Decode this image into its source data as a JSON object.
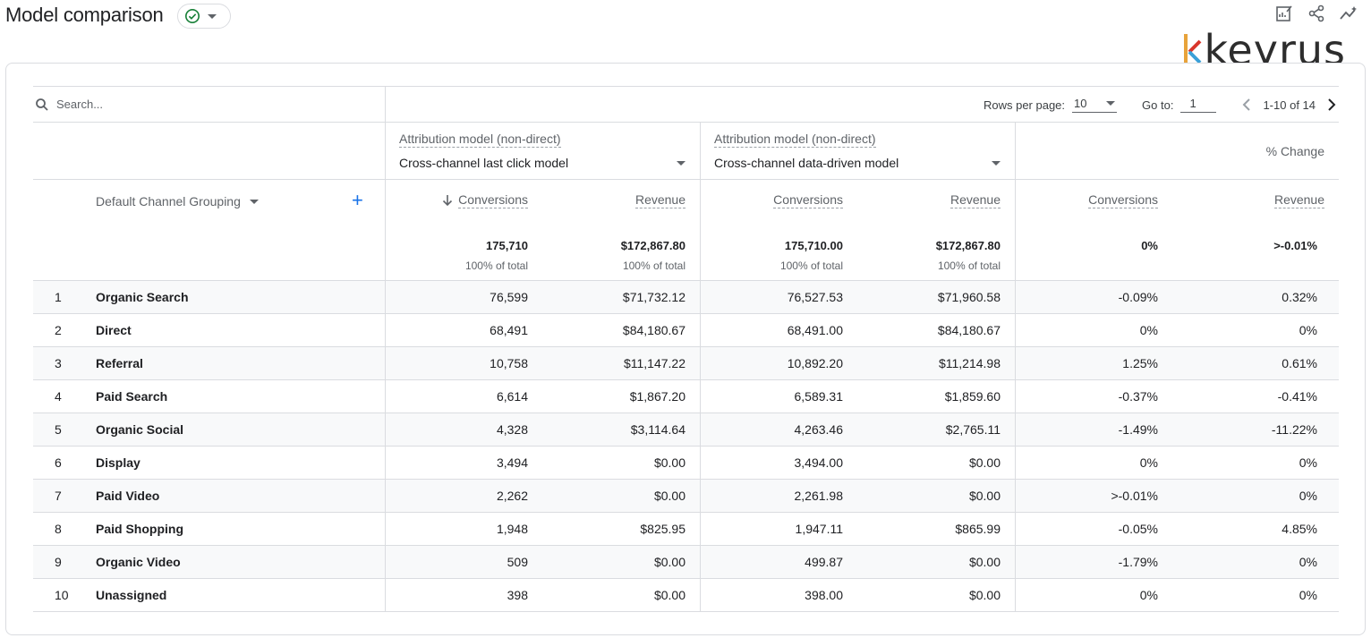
{
  "header": {
    "title": "Model comparison",
    "status_icon": "check-circle-icon",
    "icons": [
      "edit-report-icon",
      "share-icon",
      "insights-icon"
    ]
  },
  "brand": {
    "name": "keyrus"
  },
  "search": {
    "placeholder": "Search..."
  },
  "pagination": {
    "rows_per_page_label": "Rows per page:",
    "rows_per_page_value": "10",
    "goto_label": "Go to:",
    "goto_value": "1",
    "range_text": "1-10 of 14"
  },
  "models": {
    "left": {
      "label": "Attribution model (non-direct)",
      "value": "Cross-channel last click model"
    },
    "right": {
      "label": "Attribution model (non-direct)",
      "value": "Cross-channel data-driven model"
    },
    "pct_change_label": "% Change"
  },
  "columns": {
    "dimension": "Default Channel Grouping",
    "metrics": [
      "Conversions",
      "Revenue",
      "Conversions",
      "Revenue",
      "Conversions",
      "Revenue"
    ]
  },
  "totals": [
    {
      "value": "175,710",
      "sub": "100% of total"
    },
    {
      "value": "$172,867.80",
      "sub": "100% of total"
    },
    {
      "value": "175,710.00",
      "sub": "100% of total"
    },
    {
      "value": "$172,867.80",
      "sub": "100% of total"
    },
    {
      "value": "0%",
      "sub": ""
    },
    {
      "value": ">-0.01%",
      "sub": ""
    }
  ],
  "rows": [
    {
      "idx": "1",
      "name": "Organic Search",
      "c1": "76,599",
      "r1": "$71,732.12",
      "c2": "76,527.53",
      "r2": "$71,960.58",
      "pc": "-0.09%",
      "pr": "0.32%"
    },
    {
      "idx": "2",
      "name": "Direct",
      "c1": "68,491",
      "r1": "$84,180.67",
      "c2": "68,491.00",
      "r2": "$84,180.67",
      "pc": "0%",
      "pr": "0%"
    },
    {
      "idx": "3",
      "name": "Referral",
      "c1": "10,758",
      "r1": "$11,147.22",
      "c2": "10,892.20",
      "r2": "$11,214.98",
      "pc": "1.25%",
      "pr": "0.61%"
    },
    {
      "idx": "4",
      "name": "Paid Search",
      "c1": "6,614",
      "r1": "$1,867.20",
      "c2": "6,589.31",
      "r2": "$1,859.60",
      "pc": "-0.37%",
      "pr": "-0.41%"
    },
    {
      "idx": "5",
      "name": "Organic Social",
      "c1": "4,328",
      "r1": "$3,114.64",
      "c2": "4,263.46",
      "r2": "$2,765.11",
      "pc": "-1.49%",
      "pr": "-11.22%"
    },
    {
      "idx": "6",
      "name": "Display",
      "c1": "3,494",
      "r1": "$0.00",
      "c2": "3,494.00",
      "r2": "$0.00",
      "pc": "0%",
      "pr": "0%"
    },
    {
      "idx": "7",
      "name": "Paid Video",
      "c1": "2,262",
      "r1": "$0.00",
      "c2": "2,261.98",
      "r2": "$0.00",
      "pc": ">-0.01%",
      "pr": "0%"
    },
    {
      "idx": "8",
      "name": "Paid Shopping",
      "c1": "1,948",
      "r1": "$825.95",
      "c2": "1,947.11",
      "r2": "$865.99",
      "pc": "-0.05%",
      "pr": "4.85%"
    },
    {
      "idx": "9",
      "name": "Organic Video",
      "c1": "509",
      "r1": "$0.00",
      "c2": "499.87",
      "r2": "$0.00",
      "pc": "-1.79%",
      "pr": "0%"
    },
    {
      "idx": "10",
      "name": "Unassigned",
      "c1": "398",
      "r1": "$0.00",
      "c2": "398.00",
      "r2": "$0.00",
      "pc": "0%",
      "pr": "0%"
    }
  ]
}
